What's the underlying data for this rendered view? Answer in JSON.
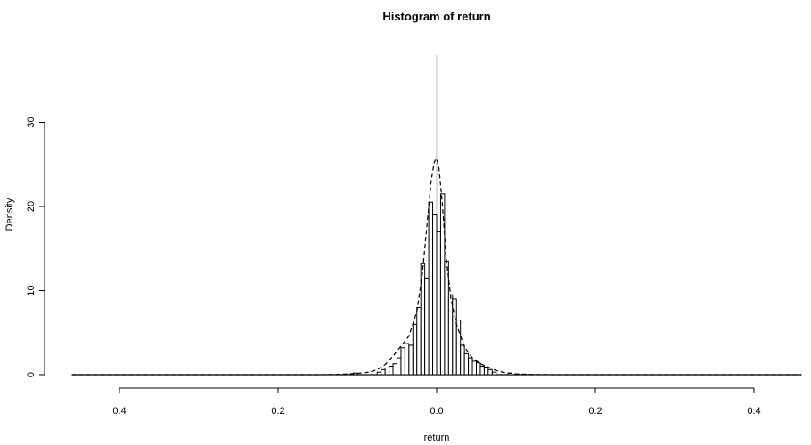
{
  "chart_data": {
    "type": "bar",
    "title": "Histogram of return",
    "xlabel": "return",
    "ylabel": "Density",
    "xlim": [
      -0.46,
      0.46
    ],
    "ylim": [
      0,
      30
    ],
    "x_ticks": [
      -0.4,
      -0.2,
      0.0,
      0.2,
      0.4
    ],
    "x_tick_labels": [
      "0.4",
      "0.2",
      "0.0",
      "0.2",
      "0.4"
    ],
    "y_ticks": [
      0,
      10,
      20,
      30
    ],
    "y_tick_labels": [
      "0",
      "10",
      "20",
      "30"
    ],
    "bin_width": 0.005,
    "bins": [
      {
        "x0": -0.105,
        "density": 0.2
      },
      {
        "x0": -0.075,
        "density": 0.3
      },
      {
        "x0": -0.07,
        "density": 0.6
      },
      {
        "x0": -0.065,
        "density": 0.8
      },
      {
        "x0": -0.06,
        "density": 1.0
      },
      {
        "x0": -0.055,
        "density": 1.3
      },
      {
        "x0": -0.05,
        "density": 2.0
      },
      {
        "x0": -0.045,
        "density": 3.2
      },
      {
        "x0": -0.04,
        "density": 3.7
      },
      {
        "x0": -0.035,
        "density": 3.5
      },
      {
        "x0": -0.03,
        "density": 6.0
      },
      {
        "x0": -0.025,
        "density": 8.0
      },
      {
        "x0": -0.02,
        "density": 13.2
      },
      {
        "x0": -0.015,
        "density": 11.5
      },
      {
        "x0": -0.01,
        "density": 20.5
      },
      {
        "x0": -0.005,
        "density": 19.0
      },
      {
        "x0": 0.0,
        "density": 17.0
      },
      {
        "x0": 0.005,
        "density": 21.5
      },
      {
        "x0": 0.01,
        "density": 13.5
      },
      {
        "x0": 0.015,
        "density": 9.5
      },
      {
        "x0": 0.02,
        "density": 9.0
      },
      {
        "x0": 0.025,
        "density": 6.5
      },
      {
        "x0": 0.03,
        "density": 3.5
      },
      {
        "x0": 0.035,
        "density": 2.5
      },
      {
        "x0": 0.04,
        "density": 2.0
      },
      {
        "x0": 0.045,
        "density": 1.6
      },
      {
        "x0": 0.05,
        "density": 1.4
      },
      {
        "x0": 0.055,
        "density": 1.0
      },
      {
        "x0": 0.06,
        "density": 0.9
      },
      {
        "x0": 0.065,
        "density": 0.6
      },
      {
        "x0": 0.07,
        "density": 0.3
      },
      {
        "x0": 0.09,
        "density": 0.2
      }
    ],
    "density_curve": {
      "style": "dashed",
      "x": [
        -0.46,
        -0.15,
        -0.12,
        -0.1,
        -0.085,
        -0.075,
        -0.065,
        -0.055,
        -0.045,
        -0.035,
        -0.025,
        -0.018,
        -0.012,
        -0.007,
        -0.003,
        0.0,
        0.003,
        0.007,
        0.012,
        0.018,
        0.025,
        0.035,
        0.045,
        0.055,
        0.065,
        0.075,
        0.085,
        0.1,
        0.12,
        0.15,
        0.46
      ],
      "y": [
        0.0,
        0.0,
        0.05,
        0.15,
        0.3,
        0.6,
        1.2,
        2.2,
        3.4,
        4.6,
        7.5,
        12.0,
        18.0,
        23.0,
        25.3,
        25.7,
        24.5,
        20.5,
        14.0,
        9.0,
        6.0,
        3.3,
        2.0,
        1.3,
        0.9,
        0.5,
        0.25,
        0.1,
        0.03,
        0.0,
        0.0
      ]
    },
    "reference_line": {
      "x": 0.0,
      "y_top": 38.0,
      "color": "#bbbbbb"
    },
    "grid": false,
    "legend": "none"
  }
}
